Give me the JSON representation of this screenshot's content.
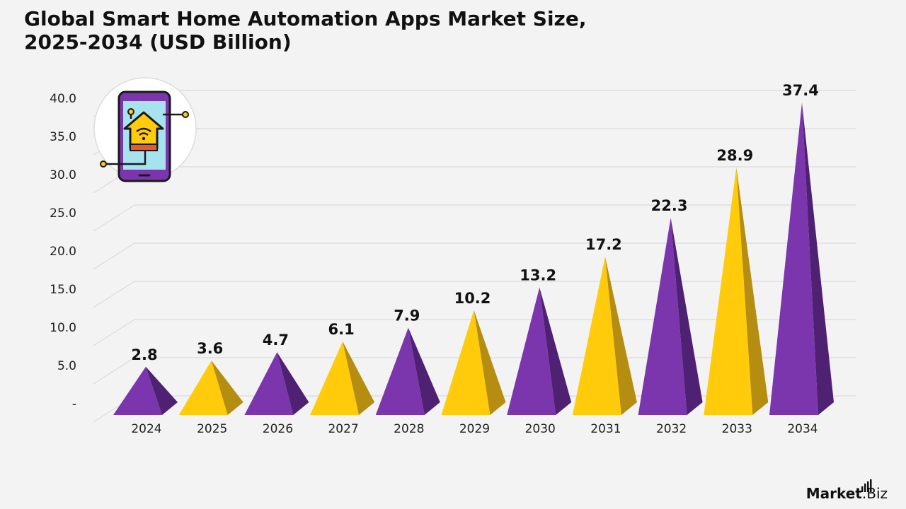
{
  "title": {
    "line1": "Global Smart Home Automation Apps Market Size,",
    "line2": "2025-2034 (USD Billion)"
  },
  "chart_data": {
    "type": "bar",
    "title": "Global Smart Home Automation Apps Market Size, 2025-2034 (USD Billion)",
    "categories": [
      "2024",
      "2025",
      "2026",
      "2027",
      "2028",
      "2029",
      "2030",
      "2031",
      "2032",
      "2033",
      "2034"
    ],
    "values": [
      2.8,
      3.6,
      4.7,
      6.1,
      7.9,
      10.2,
      13.2,
      17.2,
      22.3,
      28.9,
      37.4
    ],
    "data_labels": [
      "2.8",
      "3.6",
      "4.7",
      "6.1",
      "7.9",
      "10.2",
      "13.2",
      "17.2",
      "22.3",
      "28.9",
      "37.4"
    ],
    "y_ticks": [
      "-",
      "5.0",
      "10.0",
      "15.0",
      "20.0",
      "25.0",
      "30.0",
      "35.0",
      "40.0"
    ],
    "ylim": [
      0,
      40
    ],
    "xlabel": "",
    "ylabel": "",
    "grid": true,
    "legend": "none",
    "bar_shape": "pyramid",
    "colors": {
      "purple": "#7b35ad",
      "purple_dark": "#4e2173",
      "yellow": "#ffcb0a",
      "yellow_dark": "#b58d10",
      "grid": "#d6d6d6"
    },
    "bar_colors": [
      "purple",
      "yellow",
      "purple",
      "yellow",
      "purple",
      "yellow",
      "purple",
      "yellow",
      "purple",
      "yellow",
      "purple"
    ]
  },
  "icon": {
    "name": "smart-home-phone-icon"
  },
  "brand": {
    "part1": "Market",
    "part2": ".Biz"
  }
}
